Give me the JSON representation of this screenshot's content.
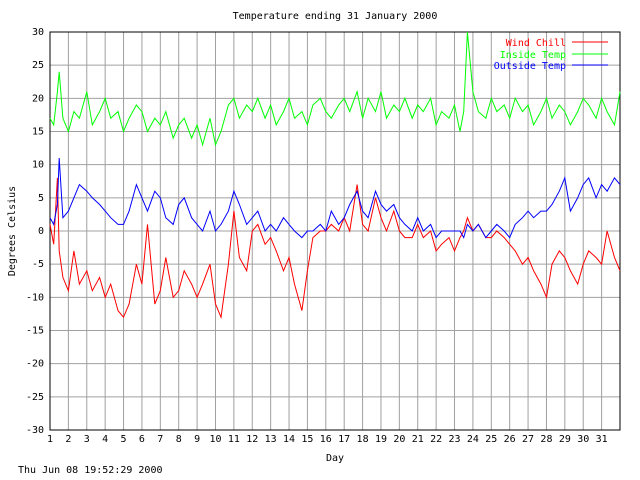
{
  "chart_data": {
    "type": "line",
    "title": "Temperature ending 31 January 2000",
    "xlabel": "Day",
    "ylabel": "Degrees Celsius",
    "xlim": [
      1,
      32
    ],
    "ylim": [
      -30,
      30
    ],
    "grid": true,
    "legend_position": "top-right",
    "x_ticks": [
      "1",
      "2",
      "3",
      "4",
      "5",
      "6",
      "7",
      "8",
      "9",
      "10",
      "11",
      "12",
      "13",
      "14",
      "15",
      "16",
      "17",
      "18",
      "19",
      "20",
      "21",
      "22",
      "23",
      "24",
      "25",
      "26",
      "27",
      "28",
      "29",
      "30",
      "31"
    ],
    "y_ticks": [
      "-30",
      "-25",
      "-20",
      "-15",
      "-10",
      "-5",
      "0",
      "5",
      "10",
      "15",
      "20",
      "25",
      "30"
    ],
    "x": [
      1.0,
      1.2,
      1.4,
      1.5,
      1.7,
      2.0,
      2.3,
      2.6,
      3.0,
      3.3,
      3.7,
      4.0,
      4.3,
      4.7,
      5.0,
      5.3,
      5.7,
      6.0,
      6.3,
      6.7,
      7.0,
      7.3,
      7.7,
      8.0,
      8.3,
      8.7,
      9.0,
      9.3,
      9.7,
      10.0,
      10.3,
      10.7,
      11.0,
      11.3,
      11.7,
      12.0,
      12.3,
      12.7,
      13.0,
      13.3,
      13.7,
      14.0,
      14.3,
      14.7,
      15.0,
      15.3,
      15.7,
      16.0,
      16.3,
      16.7,
      17.0,
      17.3,
      17.7,
      18.0,
      18.3,
      18.7,
      19.0,
      19.3,
      19.7,
      20.0,
      20.3,
      20.7,
      21.0,
      21.3,
      21.7,
      22.0,
      22.3,
      22.7,
      23.0,
      23.3,
      23.5,
      23.7,
      24.0,
      24.3,
      24.7,
      25.0,
      25.3,
      25.7,
      26.0,
      26.3,
      26.7,
      27.0,
      27.3,
      27.7,
      28.0,
      28.3,
      28.7,
      29.0,
      29.3,
      29.7,
      30.0,
      30.3,
      30.7,
      31.0,
      31.3,
      31.7,
      32.0
    ],
    "series": [
      {
        "name": "Wind Chill",
        "color": "#ff0000",
        "values": [
          1,
          -2,
          8,
          -3,
          -7,
          -9,
          -3,
          -8,
          -6,
          -9,
          -7,
          -10,
          -8,
          -12,
          -13,
          -11,
          -5,
          -8,
          1,
          -11,
          -9,
          -4,
          -10,
          -9,
          -6,
          -8,
          -10,
          -8,
          -5,
          -11,
          -13,
          -5,
          3,
          -4,
          -6,
          0,
          1,
          -2,
          -1,
          -3,
          -6,
          -4,
          -8,
          -12,
          -6,
          -1,
          0,
          0,
          1,
          0,
          2,
          0,
          7,
          1,
          0,
          5,
          2,
          0,
          3,
          0,
          -1,
          -1,
          1,
          -1,
          0,
          -3,
          -2,
          -1,
          -3,
          -1,
          0,
          2,
          0,
          1,
          -1,
          -1,
          0,
          -1,
          -2,
          -3,
          -5,
          -4,
          -6,
          -8,
          -10,
          -5,
          -3,
          -4,
          -6,
          -8,
          -5,
          -3,
          -4,
          -5,
          0,
          -4,
          -6
        ]
      },
      {
        "name": "Inside Temp",
        "color": "#00ff00",
        "values": [
          17,
          16,
          21,
          24,
          17,
          15,
          18,
          17,
          21,
          16,
          18,
          20,
          17,
          18,
          15,
          17,
          19,
          18,
          15,
          17,
          16,
          18,
          14,
          16,
          17,
          14,
          16,
          13,
          17,
          13,
          15,
          19,
          20,
          17,
          19,
          18,
          20,
          17,
          19,
          16,
          18,
          20,
          17,
          18,
          16,
          19,
          20,
          18,
          17,
          19,
          20,
          18,
          21,
          17,
          20,
          18,
          21,
          17,
          19,
          18,
          20,
          17,
          19,
          18,
          20,
          16,
          18,
          17,
          19,
          15,
          18,
          30,
          21,
          18,
          17,
          20,
          18,
          19,
          17,
          20,
          18,
          19,
          16,
          18,
          20,
          17,
          19,
          18,
          16,
          18,
          20,
          19,
          17,
          20,
          18,
          16,
          21
        ]
      },
      {
        "name": "Outside Temp",
        "color": "#0000ff",
        "values": [
          2,
          1,
          4,
          11,
          2,
          3,
          5,
          7,
          6,
          5,
          4,
          3,
          2,
          1,
          1,
          3,
          7,
          5,
          3,
          6,
          5,
          2,
          1,
          4,
          5,
          2,
          1,
          0,
          3,
          0,
          1,
          3,
          6,
          4,
          1,
          2,
          3,
          0,
          1,
          0,
          2,
          1,
          0,
          -1,
          0,
          0,
          1,
          0,
          3,
          1,
          2,
          4,
          6,
          3,
          2,
          6,
          4,
          3,
          4,
          2,
          1,
          0,
          2,
          0,
          1,
          -1,
          0,
          0,
          0,
          0,
          -1,
          1,
          0,
          1,
          -1,
          0,
          1,
          0,
          -1,
          1,
          2,
          3,
          2,
          3,
          3,
          4,
          6,
          8,
          3,
          5,
          7,
          8,
          5,
          7,
          6,
          8,
          7
        ]
      }
    ]
  },
  "footer": {
    "timestamp": "Thu Jun 08 19:52:29 2000"
  }
}
